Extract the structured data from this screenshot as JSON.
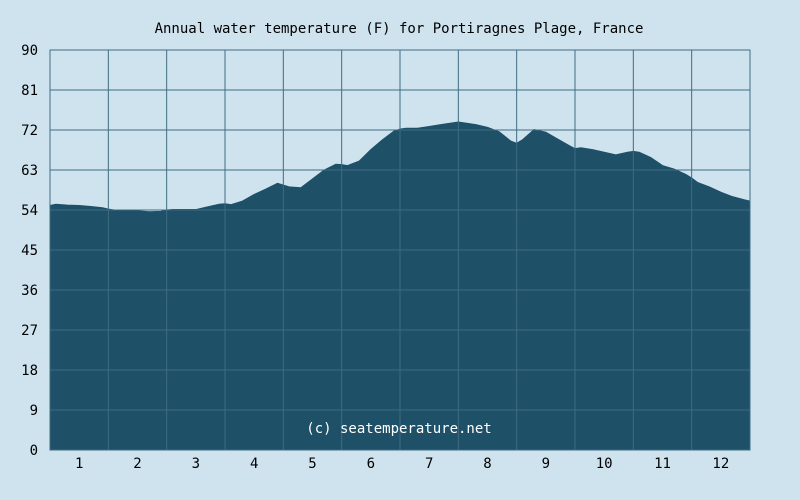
{
  "chart_data": {
    "type": "area",
    "title": "Annual water temperature (F) for Portiragnes Plage, France",
    "xlabel": "",
    "ylabel": "",
    "x_ticks": [
      "1",
      "2",
      "3",
      "4",
      "5",
      "6",
      "7",
      "8",
      "9",
      "10",
      "11",
      "12"
    ],
    "y_ticks": [
      "0",
      "9",
      "18",
      "27",
      "36",
      "45",
      "54",
      "63",
      "72",
      "81",
      "90"
    ],
    "xlim": [
      0.5,
      12.5
    ],
    "ylim": [
      0,
      90
    ],
    "grid": true,
    "watermark": "(c) seatemperature.net",
    "series": [
      {
        "x": [
          0.5,
          0.6,
          0.8,
          1.0,
          1.2,
          1.4,
          1.5,
          1.6,
          1.8,
          2.0,
          2.2,
          2.4,
          2.5,
          2.6,
          2.8,
          3.0,
          3.2,
          3.4,
          3.5,
          3.6,
          3.8,
          4.0,
          4.2,
          4.4,
          4.5,
          4.6,
          4.8,
          5.0,
          5.2,
          5.4,
          5.5,
          5.6,
          5.8,
          6.0,
          6.2,
          6.4,
          6.5,
          6.6,
          6.8,
          7.0,
          7.2,
          7.4,
          7.5,
          7.6,
          7.8,
          8.0,
          8.2,
          8.4,
          8.5,
          8.6,
          8.8,
          9.0,
          9.2,
          9.4,
          9.5,
          9.6,
          9.8,
          10.0,
          10.2,
          10.4,
          10.5,
          10.6,
          10.8,
          11.0,
          11.2,
          11.4,
          11.5,
          11.6,
          11.8,
          12.0,
          12.2,
          12.4,
          12.5
        ],
        "values": [
          55.0,
          55.3,
          55.1,
          55.0,
          54.8,
          54.5,
          54.2,
          54.0,
          53.8,
          53.8,
          53.6,
          53.7,
          54.0,
          54.1,
          54.1,
          54.1,
          54.7,
          55.3,
          55.4,
          55.2,
          56.0,
          57.5,
          58.7,
          60.0,
          59.6,
          59.2,
          59.0,
          61.0,
          63.0,
          64.3,
          64.2,
          64.0,
          65.0,
          67.6,
          69.8,
          71.8,
          72.2,
          72.4,
          72.4,
          72.8,
          73.2,
          73.6,
          73.8,
          73.6,
          73.2,
          72.6,
          71.6,
          69.5,
          69.0,
          69.8,
          72.1,
          71.5,
          70.0,
          68.5,
          67.8,
          68.0,
          67.6,
          67.0,
          66.4,
          67.0,
          67.2,
          67.0,
          65.8,
          64.0,
          63.2,
          62.0,
          61.2,
          60.2,
          59.2,
          58.0,
          57.0,
          56.3,
          56.0
        ]
      }
    ],
    "colors": {
      "fill": "#1e5068",
      "background": "#cfe3ee",
      "plot_background": "#cfe3ee",
      "grid": "#3f6c82",
      "text": "#000000",
      "watermark": "#ffffff"
    }
  }
}
